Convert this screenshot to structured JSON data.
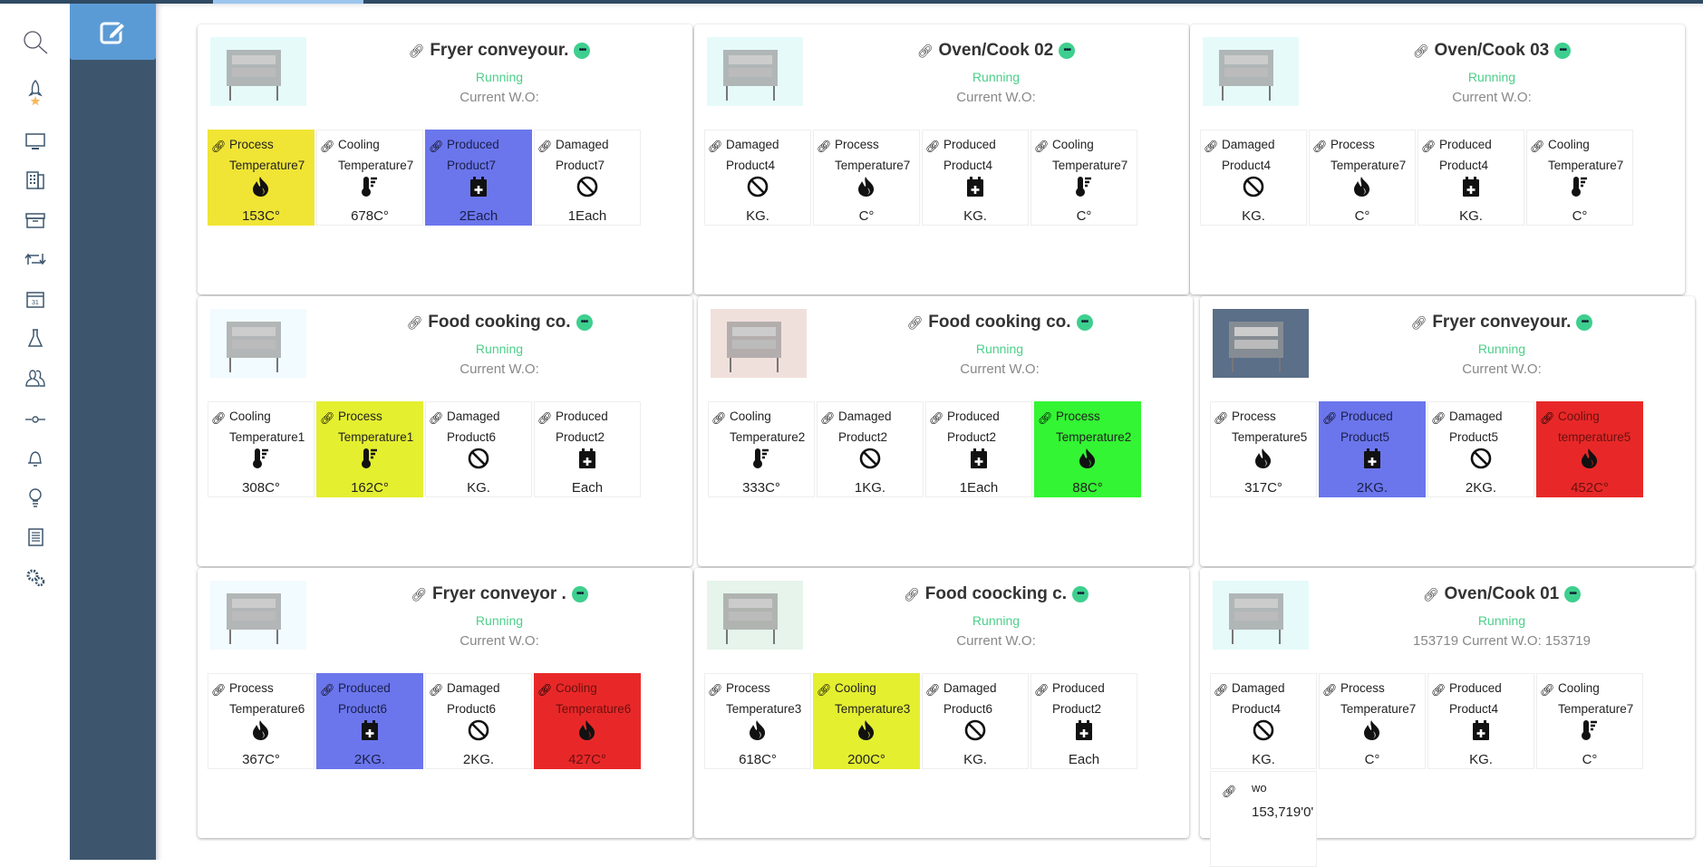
{
  "colors": {
    "yellow": "#f0e535",
    "lime": "#e4ef30",
    "blue": "#6b76ec",
    "green": "#33f533",
    "red": "#e82828",
    "running": "#4ccf8a",
    "sidebar": "#3d566e",
    "accent": "#5b9bd5"
  },
  "rail_icons": [
    "search-icon",
    "rocket-icon",
    "monitor-icon",
    "building-icon",
    "archive-icon",
    "repeat-icon",
    "calendar-icon",
    "flask-icon",
    "users-icon",
    "commit-icon",
    "bell-icon",
    "lightbulb-icon",
    "notebook-icon",
    "gears-icon"
  ],
  "cards": [
    {
      "title": "Fryer conveyour.",
      "status": "Running",
      "wo": "Current W.O:",
      "tiles": [
        {
          "l1": "Process",
          "l2": "Temperature7",
          "icon": "flame",
          "value": "153C°",
          "color": "yellow"
        },
        {
          "l1": "Cooling",
          "l2": "Temperature7",
          "icon": "thermometer",
          "value": "678C°"
        },
        {
          "l1": "Produced",
          "l2": "Product7",
          "icon": "calendar-plus",
          "value": "2Each",
          "color": "blue"
        },
        {
          "l1": "Damaged",
          "l2": "Product7",
          "icon": "ban",
          "value": "1Each"
        }
      ]
    },
    {
      "title": "Oven/Cook 02",
      "status": "Running",
      "wo": "Current W.O:",
      "tiles": [
        {
          "l1": "Damaged",
          "l2": "Product4",
          "icon": "ban",
          "value": "KG."
        },
        {
          "l1": "Process",
          "l2": "Temperature7",
          "icon": "flame",
          "value": "C°"
        },
        {
          "l1": "Produced",
          "l2": "Product4",
          "icon": "calendar-plus",
          "value": "KG."
        },
        {
          "l1": "Cooling",
          "l2": "Temperature7",
          "icon": "thermometer",
          "value": "C°"
        }
      ]
    },
    {
      "title": "Oven/Cook 03",
      "status": "Running",
      "wo": "Current W.O:",
      "tiles": [
        {
          "l1": "Damaged",
          "l2": "Product4",
          "icon": "ban",
          "value": "KG."
        },
        {
          "l1": "Process",
          "l2": "Temperature7",
          "icon": "flame",
          "value": "C°"
        },
        {
          "l1": "Produced",
          "l2": "Product4",
          "icon": "calendar-plus",
          "value": "KG."
        },
        {
          "l1": "Cooling",
          "l2": "Temperature7",
          "icon": "thermometer",
          "value": "C°"
        }
      ]
    },
    {
      "title": "Food cooking co.",
      "status": "Running",
      "wo": "Current W.O:",
      "tiles": [
        {
          "l1": "Cooling",
          "l2": "Temperature1",
          "icon": "thermometer",
          "value": "308C°"
        },
        {
          "l1": "Process",
          "l2": "Temperature1",
          "icon": "thermometer",
          "value": "162C°",
          "color": "lime"
        },
        {
          "l1": "Damaged",
          "l2": "Product6",
          "icon": "ban",
          "value": "KG."
        },
        {
          "l1": "Produced",
          "l2": "Product2",
          "icon": "calendar-plus",
          "value": "Each"
        }
      ]
    },
    {
      "title": "Food cooking co.",
      "status": "Running",
      "wo": "Current W.O:",
      "tiles": [
        {
          "l1": "Cooling",
          "l2": "Temperature2",
          "icon": "thermometer",
          "value": "333C°"
        },
        {
          "l1": "Damaged",
          "l2": "Product2",
          "icon": "ban",
          "value": "1KG."
        },
        {
          "l1": "Produced",
          "l2": "Product2",
          "icon": "calendar-plus",
          "value": "1Each"
        },
        {
          "l1": "Process",
          "l2": "Temperature2",
          "icon": "flame",
          "value": "88C°",
          "color": "green"
        }
      ]
    },
    {
      "title": "Fryer conveyour.",
      "status": "Running",
      "wo": "Current W.O:",
      "tiles": [
        {
          "l1": "Process",
          "l2": "Temperature5",
          "icon": "flame",
          "value": "317C°"
        },
        {
          "l1": "Produced",
          "l2": "Product5",
          "icon": "calendar-plus",
          "value": "2KG.",
          "color": "blue"
        },
        {
          "l1": "Damaged",
          "l2": "Product5",
          "icon": "ban",
          "value": "2KG."
        },
        {
          "l1": "Cooling",
          "l2": "temperature5",
          "icon": "flame",
          "value": "452C°",
          "color": "red"
        }
      ]
    },
    {
      "title": "Fryer conveyor .",
      "status": "Running",
      "wo": "Current W.O:",
      "tiles": [
        {
          "l1": "Process",
          "l2": "Temperature6",
          "icon": "flame",
          "value": "367C°"
        },
        {
          "l1": "Produced",
          "l2": "Product6",
          "icon": "calendar-plus",
          "value": "2KG.",
          "color": "blue"
        },
        {
          "l1": "Damaged",
          "l2": "Product6",
          "icon": "ban",
          "value": "2KG."
        },
        {
          "l1": "Cooling",
          "l2": "Temperature6",
          "icon": "flame",
          "value": "427C°",
          "color": "red"
        }
      ]
    },
    {
      "title": "Food coocking c.",
      "status": "Running",
      "wo": "Current W.O:",
      "tiles": [
        {
          "l1": "Process",
          "l2": "Temperature3",
          "icon": "flame",
          "value": "618C°"
        },
        {
          "l1": "Cooling",
          "l2": "Temperature3",
          "icon": "flame",
          "value": "200C°",
          "color": "lime"
        },
        {
          "l1": "Damaged",
          "l2": "Product6",
          "icon": "ban",
          "value": "KG."
        },
        {
          "l1": "Produced",
          "l2": "Product2",
          "icon": "calendar-plus",
          "value": "Each"
        }
      ]
    },
    {
      "title": "Oven/Cook 01",
      "status": "Running",
      "wo": "153719 Current W.O: 153719",
      "tiles": [
        {
          "l1": "Damaged",
          "l2": "Product4",
          "icon": "ban",
          "value": "KG."
        },
        {
          "l1": "Process",
          "l2": "Temperature7",
          "icon": "flame",
          "value": "C°"
        },
        {
          "l1": "Produced",
          "l2": "Product4",
          "icon": "calendar-plus",
          "value": "KG."
        },
        {
          "l1": "Cooling",
          "l2": "Temperature7",
          "icon": "thermometer",
          "value": "C°"
        },
        {
          "l1": "wo",
          "value": "153,719'0'",
          "wo": true
        }
      ]
    }
  ]
}
